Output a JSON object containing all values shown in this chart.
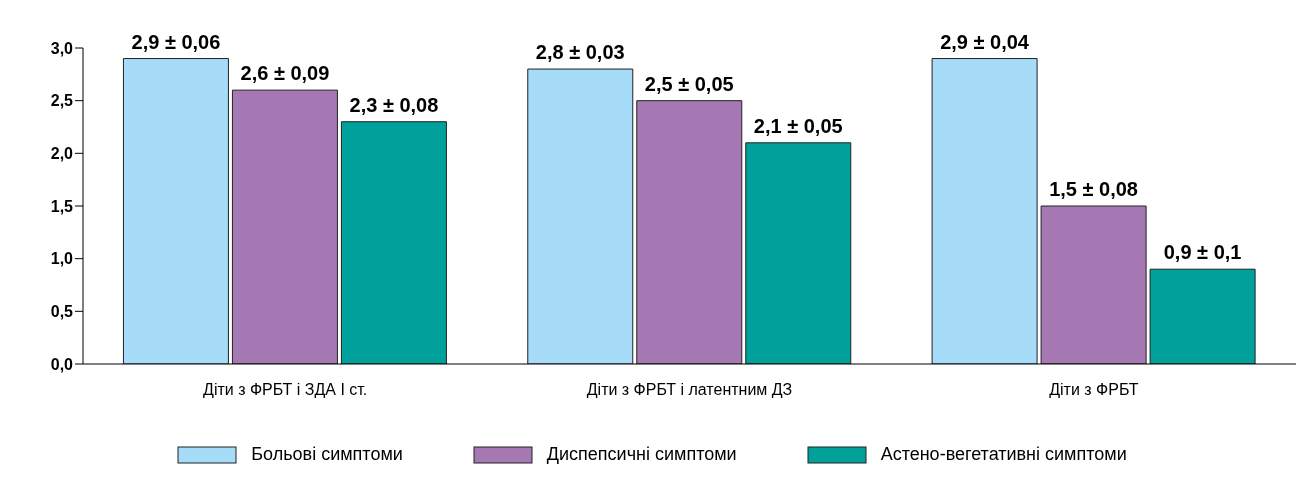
{
  "chart_data": {
    "type": "bar",
    "categories": [
      "Діти з ФРБТ і ЗДА I ст.",
      "Діти з ФРБТ і латентним ДЗ",
      "Діти з ФРБТ"
    ],
    "series": [
      {
        "name": "Больові симптоми",
        "color": "#a6dcf7",
        "values": [
          2.9,
          2.8,
          2.9
        ],
        "value_labels": [
          "2,9 ± 0,06",
          "2,8 ± 0,03",
          "2,9 ± 0,04"
        ]
      },
      {
        "name": "Диспепсичні симптоми",
        "color": "#a678b4",
        "values": [
          2.6,
          2.5,
          1.5
        ],
        "value_labels": [
          "2,6 ± 0,09",
          "2,5 ± 0,05",
          "1,5 ± 0,08"
        ]
      },
      {
        "name": "Астено-вегетативні симптоми",
        "color": "#00a19a",
        "values": [
          2.3,
          2.1,
          0.9
        ],
        "value_labels": [
          "2,3 ± 0,08",
          "2,1 ± 0,05",
          "0,9 ± 0,1"
        ]
      }
    ],
    "ylim": [
      0,
      3
    ],
    "yticks": [
      {
        "value": 0,
        "label": "0,0"
      },
      {
        "value": 0.5,
        "label": "0,5"
      },
      {
        "value": 1,
        "label": "1,0"
      },
      {
        "value": 1.5,
        "label": "1,5"
      },
      {
        "value": 2,
        "label": "2,0"
      },
      {
        "value": 2.5,
        "label": "2,5"
      },
      {
        "value": 3,
        "label": "3,0"
      }
    ],
    "grid": false,
    "legend": "bottom"
  }
}
